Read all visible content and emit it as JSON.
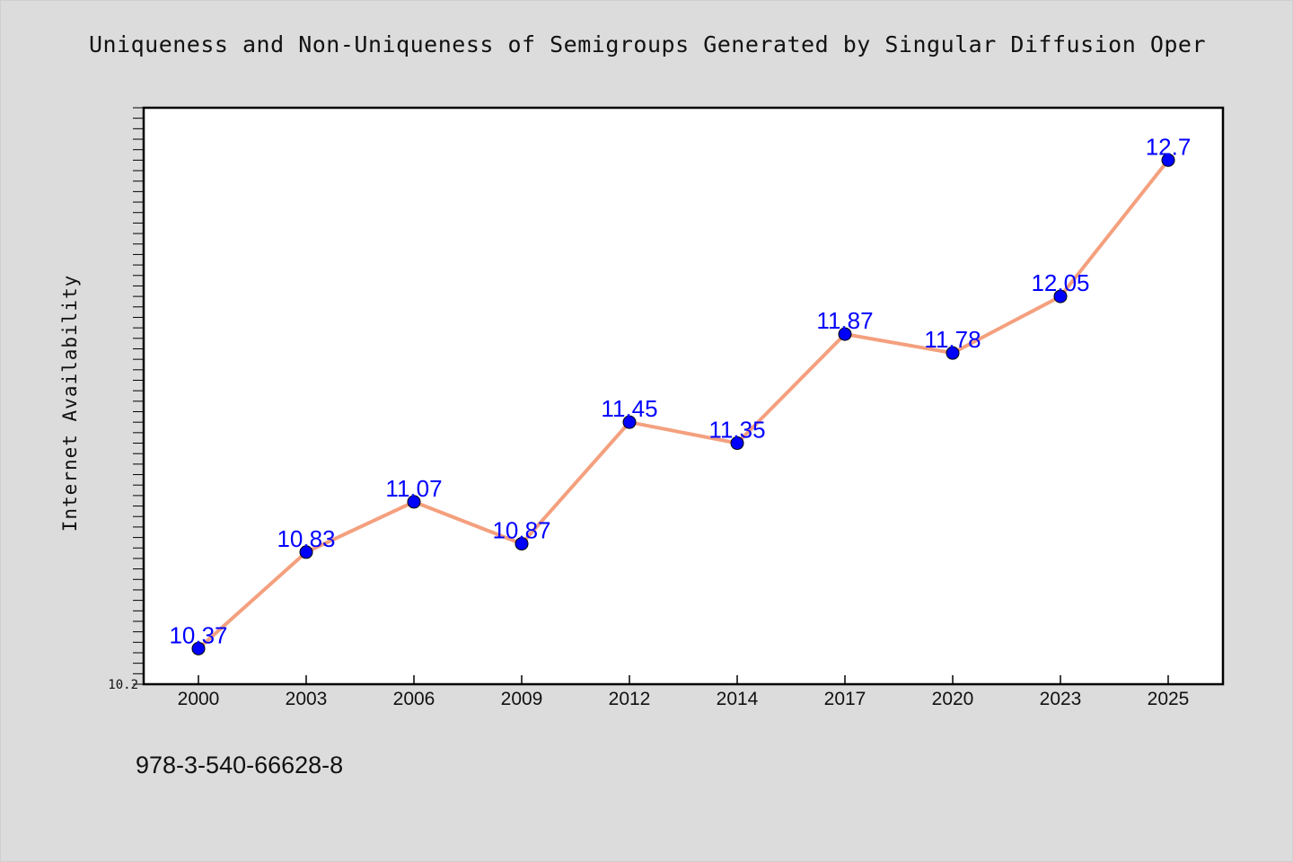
{
  "footer_text": "978-3-540-66628-8",
  "chart_data": {
    "type": "line",
    "title": "Uniqueness and Non-Uniqueness of Semigroups Generated by Singular Diffusion Oper",
    "xlabel": "",
    "ylabel": "Internet Availability",
    "categories": [
      "2000",
      "2003",
      "2006",
      "2009",
      "2012",
      "2014",
      "2017",
      "2020",
      "2023",
      "2025"
    ],
    "values": [
      10.37,
      10.83,
      11.07,
      10.87,
      11.45,
      11.35,
      11.87,
      11.78,
      12.05,
      12.7
    ],
    "data_labels": [
      "10.37",
      "10.83",
      "11.07",
      "10.87",
      "11.45",
      "11.35",
      "11.87",
      "11.78",
      "12.05",
      "12.7"
    ],
    "ylim": [
      10.2,
      12.95
    ],
    "y_tick_labels": [
      "10.2"
    ],
    "grid": false,
    "line_color": "#f4a07e",
    "marker_color": "#0000ff",
    "label_color": "#0000ff",
    "background_color": "#dcdcdc",
    "plot_background": "#ffffff"
  }
}
